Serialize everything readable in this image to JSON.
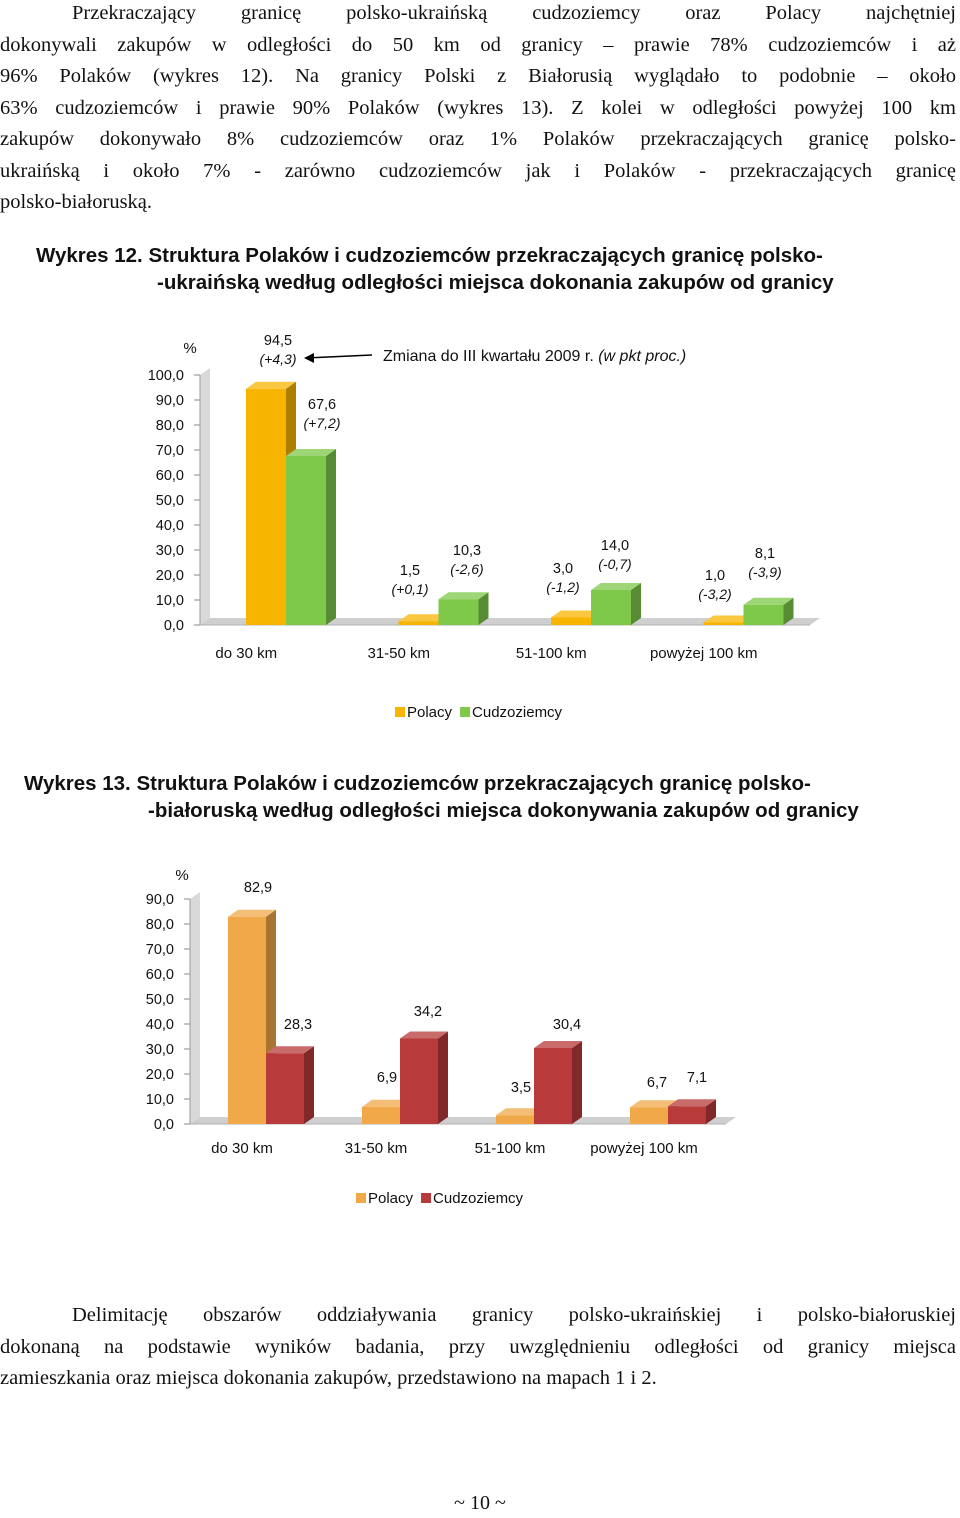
{
  "intro_lines": [
    "Przekraczający granicę polsko-ukraińską cudzoziemcy oraz Polacy najchętniej",
    "dokonywali zakupów w odległości do 50 km od granicy – prawie 78% cudzoziemców i aż",
    "96% Polaków (wykres 12). Na granicy Polski z Białorusią wyglądało to podobnie – około",
    "63% cudzoziemców i prawie 90% Polaków (wykres 13). Z kolei w odległości powyżej 100 km",
    "zakupów dokonywało 8% cudzoziemców oraz 1% Polaków przekraczających granicę polsko-",
    "ukraińską i około 7% - zarówno cudzoziemców jak i Polaków - przekraczających granicę",
    "polsko-białoruską."
  ],
  "chart12_caption": {
    "line1": "Wykres 12. Struktura Polaków i cudzoziemców przekraczających granicę polsko-",
    "line2": "-ukraińską według odległości miejsca dokonania zakupów od granicy"
  },
  "chart13_caption": {
    "line1": "Wykres 13. Struktura Polaków i cudzoziemców przekraczających granicę polsko-",
    "line2": "-białoruską według odległości miejsca dokonywania zakupów od granicy"
  },
  "outro_lines": [
    "Delimitację obszarów oddziaływania granicy polsko-ukraińskiej i polsko-białoruskiej",
    "dokonaną na podstawie wyników badania, przy uwzględnieniu odległości od granicy miejsca",
    "zamieszkania oraz miejsca dokonania zakupów, przedstawiono na mapach 1 i 2."
  ],
  "page_number": "~ 10 ~",
  "chart_data": [
    {
      "type": "bar",
      "unit_label": "%",
      "categories": [
        "do 30 km",
        "31-50 km",
        "51-100 km",
        "powyżej 100 km"
      ],
      "ylim": [
        0,
        100
      ],
      "yticks": [
        "0,0",
        "10,0",
        "20,0",
        "30,0",
        "40,0",
        "50,0",
        "60,0",
        "70,0",
        "80,0",
        "90,0",
        "100,0"
      ],
      "series": [
        {
          "name": "Polacy",
          "values": [
            94.5,
            1.5,
            3.0,
            1.0
          ],
          "labels": [
            "94,5",
            "1,5",
            "3,0",
            "1,0"
          ],
          "changes": [
            "(+4,3)",
            "(+0,1)",
            "(-1,2)",
            "(-3,2)"
          ],
          "color": "#f7b500"
        },
        {
          "name": "Cudzoziemcy",
          "values": [
            67.6,
            10.3,
            14.0,
            8.1
          ],
          "labels": [
            "67,6",
            "10,3",
            "14,0",
            "8,1"
          ],
          "changes": [
            "(+7,2)",
            "(-2,6)",
            "(-0,7)",
            "(-3,9)"
          ],
          "color": "#7ec84a"
        }
      ],
      "annotation": "Zmiana do III kwartału 2009 r.",
      "annotation_italic": "(w pkt proc.)"
    },
    {
      "type": "bar",
      "unit_label": "%",
      "categories": [
        "do 30 km",
        "31-50 km",
        "51-100 km",
        "powyżej 100 km"
      ],
      "ylim": [
        0,
        90
      ],
      "yticks": [
        "0,0",
        "10,0",
        "20,0",
        "30,0",
        "40,0",
        "50,0",
        "60,0",
        "70,0",
        "80,0",
        "90,0"
      ],
      "series": [
        {
          "name": "Polacy",
          "values": [
            82.9,
            6.9,
            3.5,
            6.7
          ],
          "labels": [
            "82,9",
            "6,9",
            "3,5",
            "6,7"
          ],
          "color": "#f0a848"
        },
        {
          "name": "Cudzoziemcy",
          "values": [
            28.3,
            34.2,
            30.4,
            7.1
          ],
          "labels": [
            "28,3",
            "34,2",
            "30,4",
            "7,1"
          ],
          "color": "#b83a3a"
        }
      ]
    }
  ]
}
